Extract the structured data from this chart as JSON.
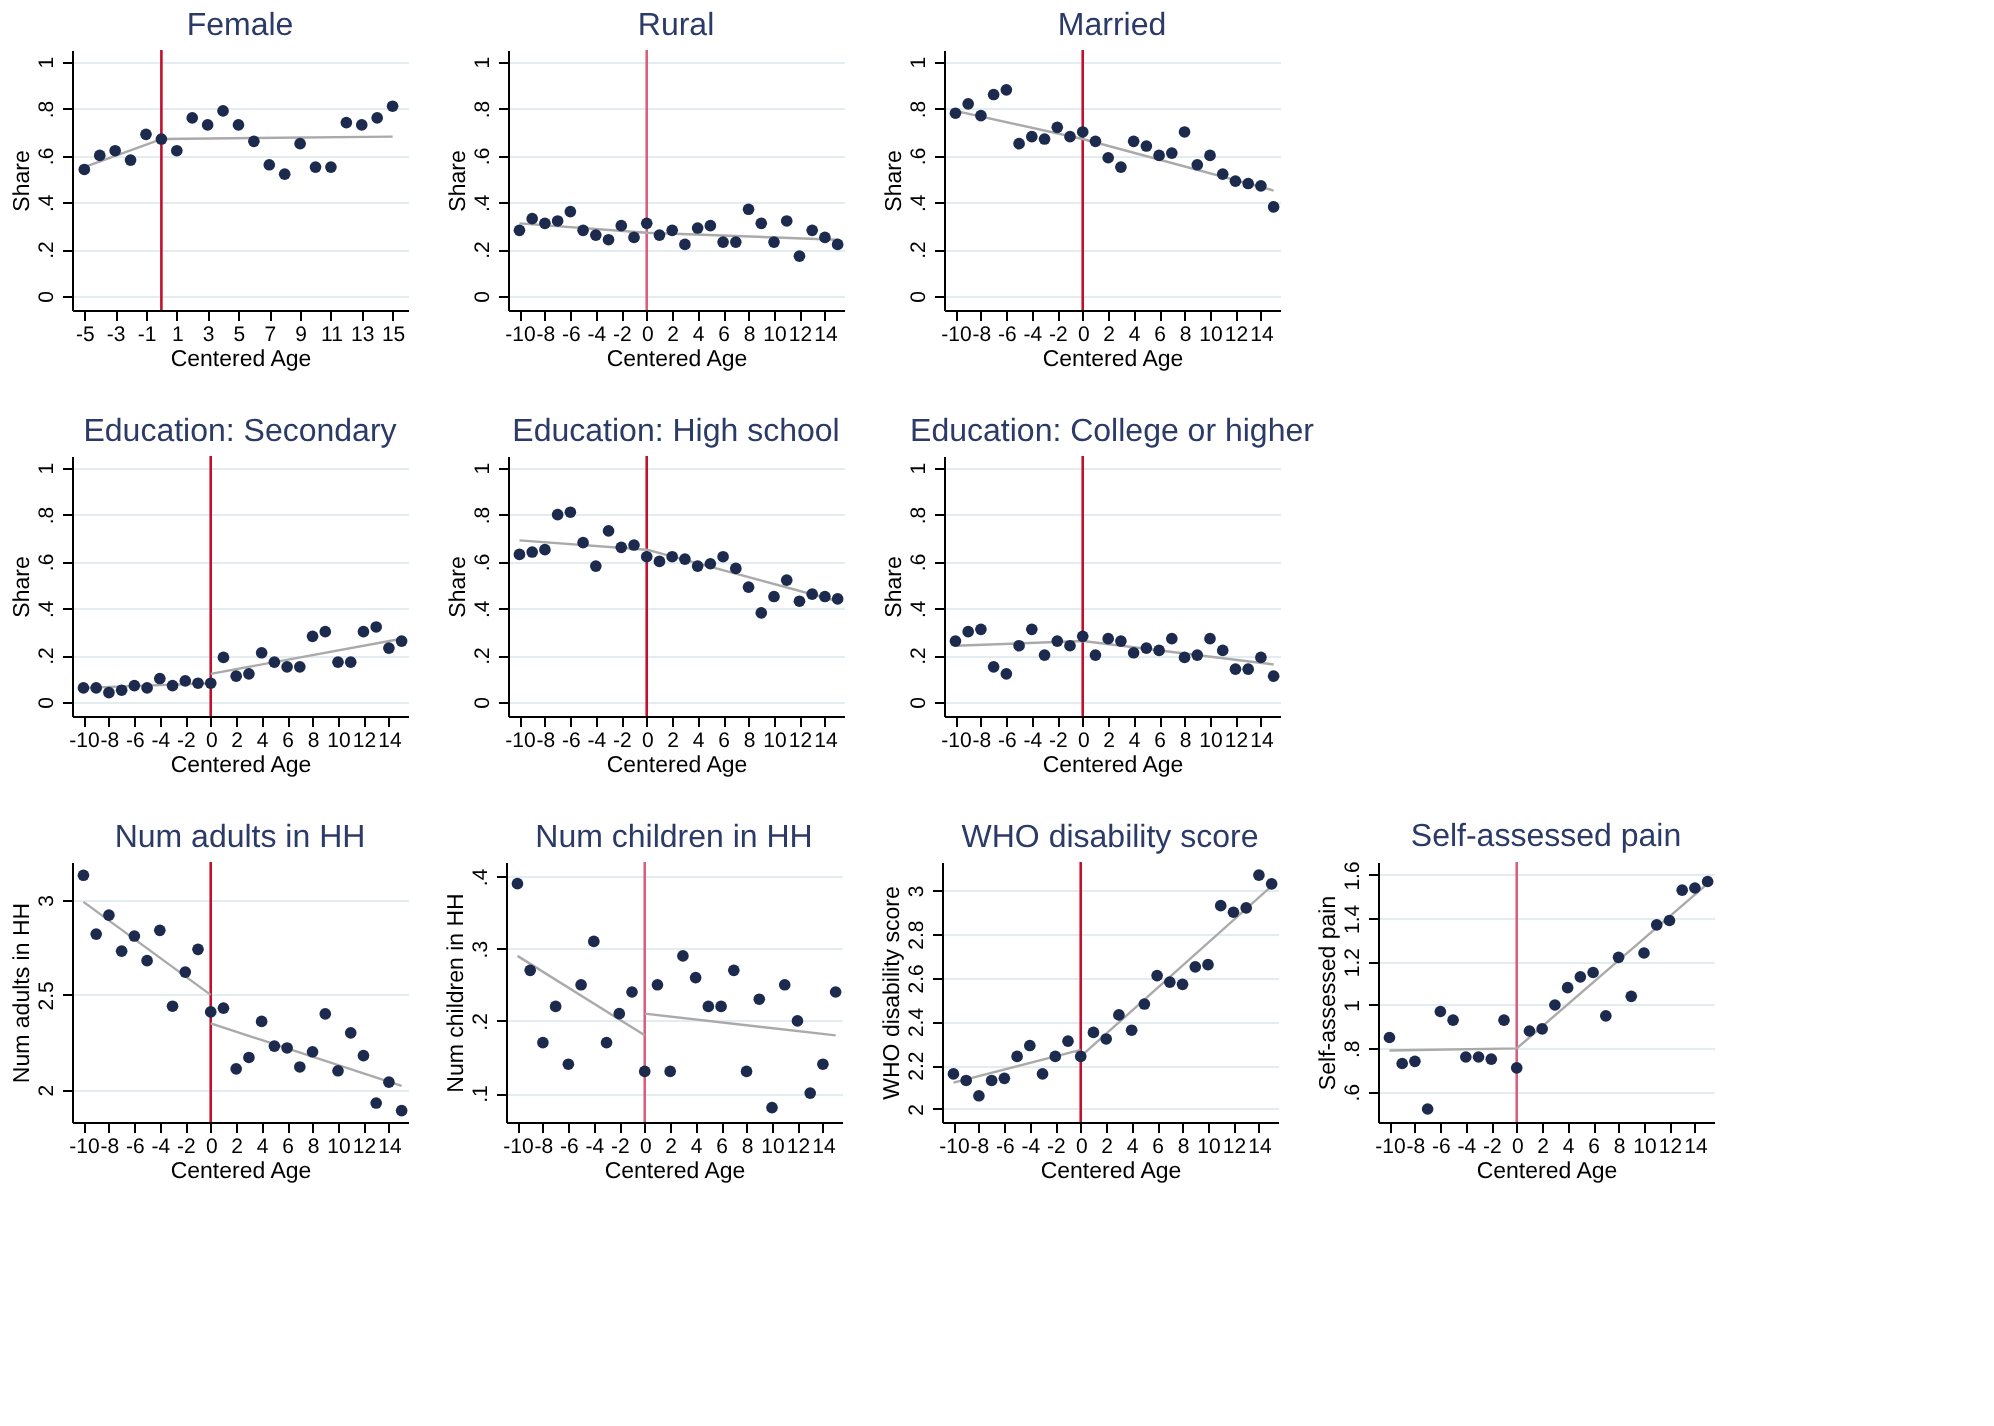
{
  "chart_data": [
    {
      "type": "scatter",
      "title": "Female",
      "xlabel": "Centered Age",
      "ylabel": "Share",
      "grid": "y",
      "xlim": [
        -5.8,
        16
      ],
      "xticks": [
        -5,
        -3,
        -1,
        1,
        3,
        5,
        7,
        9,
        11,
        13,
        15
      ],
      "ylim": [
        -0.06,
        1.05
      ],
      "yticks": [
        0,
        {
          "value": 0.2,
          "label": ".2"
        },
        {
          "value": 0.4,
          "label": ".4"
        },
        {
          "value": 0.6,
          "label": ".6"
        },
        {
          "value": 0.8,
          "label": ".8"
        },
        1
      ],
      "ref_lines": [
        {
          "axis": "x",
          "value": 0,
          "color": "#c0102e"
        }
      ],
      "series": [
        {
          "type": "line",
          "color": "#aaaaaa",
          "x": [
            -5,
            0,
            15
          ],
          "values": [
            0.55,
            0.67,
            0.68
          ]
        },
        {
          "marker": "circle",
          "color": "#1c2a4e",
          "x": [
            -5,
            -4,
            -3,
            -2,
            -1,
            0,
            1,
            2,
            3,
            4,
            5,
            6,
            7,
            8,
            9,
            10,
            11,
            12,
            13,
            14,
            15
          ],
          "values": [
            0.54,
            0.6,
            0.62,
            0.58,
            0.69,
            0.67,
            0.62,
            0.76,
            0.73,
            0.79,
            0.73,
            0.66,
            0.56,
            0.52,
            0.65,
            0.55,
            0.55,
            0.74,
            0.73,
            0.76,
            0.81
          ]
        }
      ]
    },
    {
      "type": "scatter",
      "title": "Rural",
      "xlabel": "Centered Age",
      "ylabel": "Share",
      "grid": "y",
      "xlim": [
        -10.9,
        15.5
      ],
      "xticks": [
        -10,
        -8,
        -6,
        -4,
        -2,
        0,
        2,
        4,
        6,
        8,
        10,
        12,
        14
      ],
      "ylim": [
        -0.06,
        1.05
      ],
      "yticks": [
        0,
        {
          "value": 0.2,
          "label": ".2"
        },
        {
          "value": 0.4,
          "label": ".4"
        },
        {
          "value": 0.6,
          "label": ".6"
        },
        {
          "value": 0.8,
          "label": ".8"
        },
        1
      ],
      "ref_lines": [
        {
          "axis": "x",
          "value": 0,
          "color": "#d9607a"
        }
      ],
      "series": [
        {
          "type": "line",
          "color": "#aaaaaa",
          "x": [
            -10,
            0,
            15
          ],
          "values": [
            0.31,
            0.27,
            0.24
          ]
        },
        {
          "marker": "circle",
          "color": "#1c2a4e",
          "x": [
            -10,
            -9,
            -8,
            -7,
            -6,
            -5,
            -4,
            -3,
            -2,
            -1,
            0,
            1,
            2,
            3,
            4,
            5,
            6,
            7,
            8,
            9,
            10,
            11,
            12,
            13,
            14,
            15
          ],
          "values": [
            0.28,
            0.33,
            0.31,
            0.32,
            0.36,
            0.28,
            0.26,
            0.24,
            0.3,
            0.25,
            0.31,
            0.26,
            0.28,
            0.22,
            0.29,
            0.3,
            0.23,
            0.23,
            0.37,
            0.31,
            0.23,
            0.32,
            0.17,
            0.28,
            0.25,
            0.22
          ]
        }
      ]
    },
    {
      "type": "scatter",
      "title": "Married",
      "xlabel": "Centered Age",
      "ylabel": "Share",
      "grid": "y",
      "xlim": [
        -10.9,
        15.5
      ],
      "xticks": [
        -10,
        -8,
        -6,
        -4,
        -2,
        0,
        2,
        4,
        6,
        8,
        10,
        12,
        14
      ],
      "ylim": [
        -0.06,
        1.05
      ],
      "yticks": [
        0,
        {
          "value": 0.2,
          "label": ".2"
        },
        {
          "value": 0.4,
          "label": ".4"
        },
        {
          "value": 0.6,
          "label": ".6"
        },
        {
          "value": 0.8,
          "label": ".8"
        },
        1
      ],
      "ref_lines": [
        {
          "axis": "x",
          "value": 0,
          "color": "#c0102e"
        }
      ],
      "series": [
        {
          "type": "line",
          "color": "#aaaaaa",
          "x": [
            -10,
            0,
            15
          ],
          "values": [
            0.79,
            0.67,
            0.45
          ]
        },
        {
          "marker": "circle",
          "color": "#1c2a4e",
          "x": [
            -10,
            -9,
            -8,
            -7,
            -6,
            -5,
            -4,
            -3,
            -2,
            -1,
            0,
            1,
            2,
            3,
            4,
            5,
            6,
            7,
            8,
            9,
            10,
            11,
            12,
            13,
            14,
            15
          ],
          "values": [
            0.78,
            0.82,
            0.77,
            0.86,
            0.88,
            0.65,
            0.68,
            0.67,
            0.72,
            0.68,
            0.7,
            0.66,
            0.59,
            0.55,
            0.66,
            0.64,
            0.6,
            0.61,
            0.7,
            0.56,
            0.6,
            0.52,
            0.49,
            0.48,
            0.47,
            0.38
          ]
        }
      ]
    },
    {
      "type": "scatter",
      "title": "Education: Secondary",
      "xlabel": "Centered Age",
      "ylabel": "Share",
      "grid": "y",
      "xlim": [
        -10.9,
        15.5
      ],
      "xticks": [
        -10,
        -8,
        -6,
        -4,
        -2,
        0,
        2,
        4,
        6,
        8,
        10,
        12,
        14
      ],
      "ylim": [
        -0.06,
        1.05
      ],
      "yticks": [
        0,
        {
          "value": 0.2,
          "label": ".2"
        },
        {
          "value": 0.4,
          "label": ".4"
        },
        {
          "value": 0.6,
          "label": ".6"
        },
        {
          "value": 0.8,
          "label": ".8"
        },
        1
      ],
      "ref_lines": [
        {
          "axis": "x",
          "value": 0,
          "color": "#c0102e"
        }
      ],
      "series": [
        {
          "type": "line",
          "color": "#aaaaaa",
          "x": [
            -10,
            0
          ],
          "values": [
            0.06,
            0.08
          ]
        },
        {
          "type": "line",
          "color": "#aaaaaa",
          "x": [
            0,
            15
          ],
          "values": [
            0.12,
            0.27
          ]
        },
        {
          "marker": "circle",
          "color": "#1c2a4e",
          "x": [
            -10,
            -9,
            -8,
            -7,
            -6,
            -5,
            -4,
            -3,
            -2,
            -1,
            0,
            1,
            2,
            3,
            4,
            5,
            6,
            7,
            8,
            9,
            10,
            11,
            12,
            13,
            14,
            15
          ],
          "values": [
            0.06,
            0.06,
            0.04,
            0.05,
            0.07,
            0.06,
            0.1,
            0.07,
            0.09,
            0.08,
            0.08,
            0.19,
            0.11,
            0.12,
            0.21,
            0.17,
            0.15,
            0.15,
            0.28,
            0.3,
            0.17,
            0.17,
            0.3,
            0.32,
            0.23,
            0.26
          ]
        }
      ]
    },
    {
      "type": "scatter",
      "title": "Education: High school",
      "xlabel": "Centered Age",
      "ylabel": "Share",
      "grid": "y",
      "xlim": [
        -10.9,
        15.5
      ],
      "xticks": [
        -10,
        -8,
        -6,
        -4,
        -2,
        0,
        2,
        4,
        6,
        8,
        10,
        12,
        14
      ],
      "ylim": [
        -0.06,
        1.05
      ],
      "yticks": [
        0,
        {
          "value": 0.2,
          "label": ".2"
        },
        {
          "value": 0.4,
          "label": ".4"
        },
        {
          "value": 0.6,
          "label": ".6"
        },
        {
          "value": 0.8,
          "label": ".8"
        },
        1
      ],
      "ref_lines": [
        {
          "axis": "x",
          "value": 0,
          "color": "#c0102e"
        }
      ],
      "series": [
        {
          "type": "line",
          "color": "#aaaaaa",
          "x": [
            -10,
            0,
            15
          ],
          "values": [
            0.69,
            0.65,
            0.43
          ]
        },
        {
          "marker": "circle",
          "color": "#1c2a4e",
          "x": [
            -10,
            -9,
            -8,
            -7,
            -6,
            -5,
            -4,
            -3,
            -2,
            -1,
            0,
            1,
            2,
            3,
            4,
            5,
            6,
            7,
            8,
            9,
            10,
            11,
            12,
            13,
            14,
            15
          ],
          "values": [
            0.63,
            0.64,
            0.65,
            0.8,
            0.81,
            0.68,
            0.58,
            0.73,
            0.66,
            0.67,
            0.62,
            0.6,
            0.62,
            0.61,
            0.58,
            0.59,
            0.62,
            0.57,
            0.49,
            0.38,
            0.45,
            0.52,
            0.43,
            0.46,
            0.45,
            0.44
          ]
        }
      ]
    },
    {
      "type": "scatter",
      "title": "Education: College or higher",
      "xlabel": "Centered Age",
      "ylabel": "Share",
      "grid": "y",
      "xlim": [
        -10.9,
        15.5
      ],
      "xticks": [
        -10,
        -8,
        -6,
        -4,
        -2,
        0,
        2,
        4,
        6,
        8,
        10,
        12,
        14
      ],
      "ylim": [
        -0.06,
        1.05
      ],
      "yticks": [
        0,
        {
          "value": 0.2,
          "label": ".2"
        },
        {
          "value": 0.4,
          "label": ".4"
        },
        {
          "value": 0.6,
          "label": ".6"
        },
        {
          "value": 0.8,
          "label": ".8"
        },
        1
      ],
      "ref_lines": [
        {
          "axis": "x",
          "value": 0,
          "color": "#c0102e"
        }
      ],
      "series": [
        {
          "type": "line",
          "color": "#aaaaaa",
          "x": [
            -10,
            0,
            15
          ],
          "values": [
            0.24,
            0.26,
            0.16
          ]
        },
        {
          "marker": "circle",
          "color": "#1c2a4e",
          "x": [
            -10,
            -9,
            -8,
            -7,
            -6,
            -5,
            -4,
            -3,
            -2,
            -1,
            0,
            1,
            2,
            3,
            4,
            5,
            6,
            7,
            8,
            9,
            10,
            11,
            12,
            13,
            14,
            15
          ],
          "values": [
            0.26,
            0.3,
            0.31,
            0.15,
            0.12,
            0.24,
            0.31,
            0.2,
            0.26,
            0.24,
            0.28,
            0.2,
            0.27,
            0.26,
            0.21,
            0.23,
            0.22,
            0.27,
            0.19,
            0.2,
            0.27,
            0.22,
            0.14,
            0.14,
            0.19,
            0.11
          ]
        }
      ]
    },
    {
      "type": "scatter",
      "title": "Num adults in HH",
      "xlabel": "Centered Age",
      "ylabel": "Num adults in HH",
      "grid": "y",
      "xlim": [
        -10.9,
        15.5
      ],
      "xticks": [
        -10,
        -8,
        -6,
        -4,
        -2,
        0,
        2,
        4,
        6,
        8,
        10,
        12,
        14
      ],
      "ylim": [
        1.83,
        3.2
      ],
      "yticks": [
        2,
        2.5,
        3
      ],
      "ref_lines": [
        {
          "axis": "x",
          "value": 0,
          "color": "#c0102e"
        }
      ],
      "series": [
        {
          "type": "line",
          "color": "#aaaaaa",
          "x": [
            -10,
            0
          ],
          "values": [
            2.99,
            2.5
          ]
        },
        {
          "type": "line",
          "color": "#aaaaaa",
          "x": [
            0,
            15
          ],
          "values": [
            2.35,
            2.02
          ]
        },
        {
          "marker": "circle",
          "color": "#1c2a4e",
          "x": [
            -10,
            -9,
            -8,
            -7,
            -6,
            -5,
            -4,
            -3,
            -2,
            -1,
            0,
            1,
            2,
            3,
            4,
            5,
            6,
            7,
            8,
            9,
            10,
            11,
            12,
            13,
            14,
            15
          ],
          "values": [
            3.13,
            2.82,
            2.92,
            2.73,
            2.81,
            2.68,
            2.84,
            2.44,
            2.62,
            2.74,
            2.41,
            2.43,
            2.11,
            2.17,
            2.36,
            2.23,
            2.22,
            2.12,
            2.2,
            2.4,
            2.1,
            2.3,
            2.18,
            1.93,
            2.04,
            1.89
          ]
        }
      ]
    },
    {
      "type": "scatter",
      "title": "Num children in HH",
      "xlabel": "Centered Age",
      "ylabel": "Num children in HH",
      "grid": "y",
      "xlim": [
        -10.9,
        15.5
      ],
      "xticks": [
        -10,
        -8,
        -6,
        -4,
        -2,
        0,
        2,
        4,
        6,
        8,
        10,
        12,
        14
      ],
      "ylim": [
        0.06,
        0.42
      ],
      "yticks": [
        {
          "value": 0.1,
          "label": ".1"
        },
        {
          "value": 0.2,
          "label": ".2"
        },
        {
          "value": 0.3,
          "label": ".3"
        },
        {
          "value": 0.4,
          "label": ".4"
        }
      ],
      "ref_lines": [
        {
          "axis": "x",
          "value": 0,
          "color": "#d9607a"
        }
      ],
      "series": [
        {
          "type": "line",
          "color": "#aaaaaa",
          "x": [
            -10,
            0
          ],
          "values": [
            0.29,
            0.18
          ]
        },
        {
          "type": "line",
          "color": "#aaaaaa",
          "x": [
            0,
            15
          ],
          "values": [
            0.21,
            0.18
          ]
        },
        {
          "marker": "circle",
          "color": "#1c2a4e",
          "x": [
            -10,
            -9,
            -8,
            -7,
            -6,
            -5,
            -4,
            -3,
            -2,
            -1,
            0,
            1,
            2,
            3,
            4,
            5,
            6,
            7,
            8,
            9,
            10,
            11,
            12,
            13,
            14,
            15
          ],
          "values": [
            0.39,
            0.27,
            0.17,
            0.22,
            0.14,
            0.25,
            0.31,
            0.17,
            0.21,
            0.24,
            0.13,
            0.25,
            0.13,
            0.29,
            0.26,
            0.22,
            0.22,
            0.27,
            0.13,
            0.23,
            0.08,
            0.25,
            0.2,
            0.1,
            0.14,
            0.24
          ]
        }
      ]
    },
    {
      "type": "scatter",
      "title": "WHO disability score",
      "xlabel": "Centered Age",
      "ylabel": "WHO disability score",
      "grid": "y",
      "xlim": [
        -10.9,
        15.5
      ],
      "xticks": [
        -10,
        -8,
        -6,
        -4,
        -2,
        0,
        2,
        4,
        6,
        8,
        10,
        12,
        14
      ],
      "ylim": [
        1.94,
        3.13
      ],
      "yticks": [
        2,
        2.2,
        2.4,
        2.6,
        2.8,
        3
      ],
      "ref_lines": [
        {
          "axis": "x",
          "value": 0,
          "color": "#c0102e"
        }
      ],
      "series": [
        {
          "type": "line",
          "color": "#aaaaaa",
          "x": [
            -10,
            0
          ],
          "values": [
            2.12,
            2.27
          ]
        },
        {
          "type": "line",
          "color": "#aaaaaa",
          "x": [
            0,
            15
          ],
          "values": [
            2.24,
            3.02
          ]
        },
        {
          "marker": "circle",
          "color": "#1c2a4e",
          "x": [
            -10,
            -9,
            -8,
            -7,
            -6,
            -5,
            -4,
            -3,
            -2,
            -1,
            0,
            1,
            2,
            3,
            4,
            5,
            6,
            7,
            8,
            9,
            10,
            11,
            12,
            13,
            14,
            15
          ],
          "values": [
            2.16,
            2.13,
            2.06,
            2.13,
            2.14,
            2.24,
            2.29,
            2.16,
            2.24,
            2.31,
            2.24,
            2.35,
            2.32,
            2.43,
            2.36,
            2.48,
            2.61,
            2.58,
            2.57,
            2.65,
            2.66,
            2.93,
            2.9,
            2.92,
            3.07,
            3.03
          ]
        }
      ]
    },
    {
      "type": "scatter",
      "title": "Self-assessed pain",
      "xlabel": "Centered Age",
      "ylabel": "Self-assessed pain",
      "grid": "y",
      "xlim": [
        -10.9,
        15.5
      ],
      "xticks": [
        -10,
        -8,
        -6,
        -4,
        -2,
        0,
        2,
        4,
        6,
        8,
        10,
        12,
        14
      ],
      "ylim": [
        0.46,
        1.66
      ],
      "yticks": [
        {
          "value": 0.6,
          "label": ".6"
        },
        {
          "value": 0.8,
          "label": ".8"
        },
        1,
        1.2,
        1.4,
        1.6
      ],
      "ref_lines": [
        {
          "axis": "x",
          "value": 0,
          "color": "#d9607a"
        }
      ],
      "series": [
        {
          "type": "line",
          "color": "#aaaaaa",
          "x": [
            -10,
            0,
            15
          ],
          "values": [
            0.79,
            0.8,
            1.56
          ]
        },
        {
          "marker": "circle",
          "color": "#1c2a4e",
          "x": [
            -10,
            -9,
            -8,
            -7,
            -6,
            -5,
            -4,
            -3,
            -2,
            -1,
            0,
            1,
            2,
            3,
            4,
            5,
            6,
            7,
            8,
            9,
            10,
            11,
            12,
            13,
            14,
            15
          ],
          "values": [
            0.85,
            0.73,
            0.74,
            0.52,
            0.97,
            0.93,
            0.76,
            0.76,
            0.75,
            0.93,
            0.71,
            0.88,
            0.89,
            1.0,
            1.08,
            1.13,
            1.15,
            0.95,
            1.22,
            1.04,
            1.24,
            1.37,
            1.39,
            1.53,
            1.54,
            1.57
          ]
        }
      ]
    }
  ]
}
